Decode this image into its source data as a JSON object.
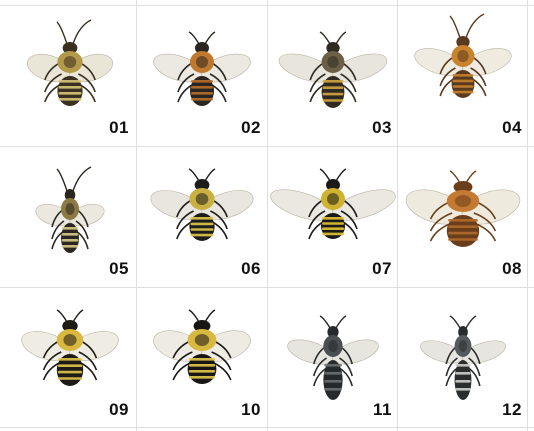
{
  "specimens": [
    {
      "label": "01",
      "icon": "bee-icon",
      "colors": {
        "body": "#3a3020",
        "hair": "#b39a4a",
        "stripe": "#d9c77a",
        "wing": "#e6e2d0"
      }
    },
    {
      "label": "02",
      "icon": "bee-icon",
      "colors": {
        "body": "#2a2520",
        "hair": "#c0782e",
        "stripe": "#b86f2a",
        "wing": "#e8e5dc"
      }
    },
    {
      "label": "03",
      "icon": "bee-icon",
      "colors": {
        "body": "#2f2a22",
        "hair": "#6b5f45",
        "stripe": "#d4a640",
        "wing": "#e3e0d6"
      }
    },
    {
      "label": "04",
      "icon": "bee-icon",
      "colors": {
        "body": "#5a3a1e",
        "hair": "#c9822d",
        "stripe": "#c9822d",
        "wing": "#ece7da"
      }
    },
    {
      "label": "05",
      "icon": "bee-icon",
      "colors": {
        "body": "#2b2720",
        "hair": "#8c7a45",
        "stripe": "#d9cc8a",
        "wing": "#e7e4da"
      }
    },
    {
      "label": "06",
      "icon": "bee-icon",
      "colors": {
        "body": "#1c1c1c",
        "hair": "#c9b040",
        "stripe": "#e0c84a",
        "wing": "#e4e2d8"
      }
    },
    {
      "label": "07",
      "icon": "bee-icon",
      "colors": {
        "body": "#1a1a1a",
        "hair": "#cfb230",
        "stripe": "#e3c535",
        "wing": "#e6e4dc"
      }
    },
    {
      "label": "08",
      "icon": "bee-icon",
      "colors": {
        "body": "#6a3e1a",
        "hair": "#c47a33",
        "stripe": "#b06a2a",
        "wing": "#ebe6d8"
      }
    },
    {
      "label": "09",
      "icon": "bee-icon",
      "colors": {
        "body": "#1e1a16",
        "hair": "#d8b83e",
        "stripe": "#e2c84e",
        "wing": "#ece9df"
      }
    },
    {
      "label": "10",
      "icon": "bee-icon",
      "colors": {
        "body": "#181614",
        "hair": "#d9b840",
        "stripe": "#e6c84e",
        "wing": "#ebe8de"
      }
    },
    {
      "label": "11",
      "icon": "bee-icon",
      "colors": {
        "body": "#262a2c",
        "hair": "#4a4f52",
        "stripe": "#6a6f70",
        "wing": "#e2e0d8"
      }
    },
    {
      "label": "12",
      "icon": "bee-icon",
      "colors": {
        "body": "#2a2d2e",
        "hair": "#555a5c",
        "stripe": "#cfd0cc",
        "wing": "#e3e1d9"
      }
    }
  ]
}
